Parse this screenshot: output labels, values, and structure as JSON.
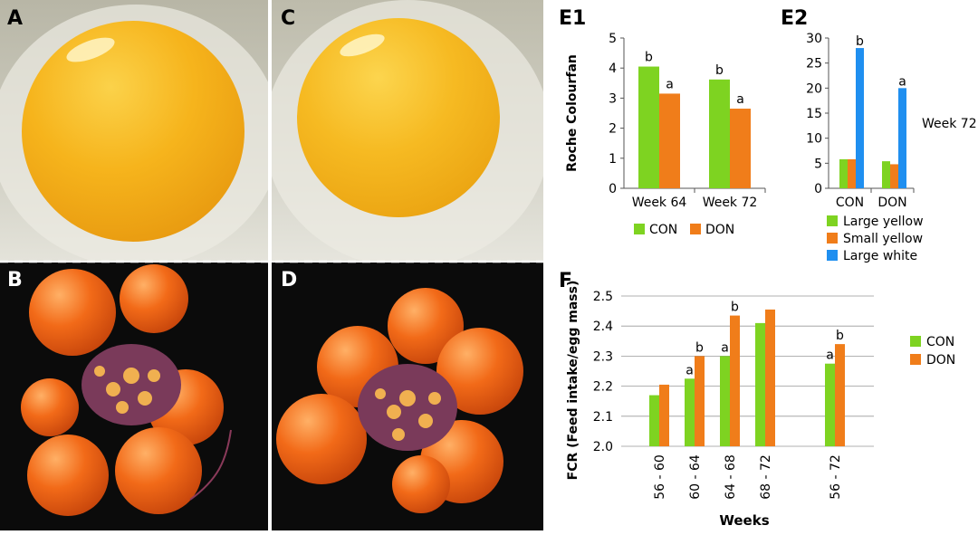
{
  "panels": {
    "A": "A",
    "B": "B",
    "C": "C",
    "D": "D",
    "E1": "E1",
    "E2": "E2",
    "F": "F"
  },
  "colors": {
    "CON": "#7ed321",
    "DON": "#f07d1a",
    "large_white": "#1f8ff0",
    "yolk": "#f5b01a",
    "follicle": "#e85a10",
    "photo_bg_bottom": "#0b0b0b"
  },
  "chart_data": [
    {
      "id": "E1",
      "type": "bar",
      "ylabel": "Roche Colourfan",
      "ylim": [
        0,
        5
      ],
      "yticks": [
        "0",
        "1",
        "2",
        "3",
        "4",
        "5"
      ],
      "categories": [
        "Week 64",
        "Week 72"
      ],
      "series": [
        {
          "name": "CON",
          "values": [
            4.05,
            3.62
          ],
          "labels": [
            "b",
            "b"
          ]
        },
        {
          "name": "DON",
          "values": [
            3.15,
            2.65
          ],
          "labels": [
            "a",
            "a"
          ]
        }
      ],
      "legend": [
        "CON",
        "DON"
      ]
    },
    {
      "id": "E2",
      "type": "bar",
      "annotation": "Week 72",
      "ylim": [
        0,
        30
      ],
      "yticks": [
        "0",
        "5",
        "10",
        "15",
        "20",
        "25",
        "30"
      ],
      "categories": [
        "CON",
        "DON"
      ],
      "series": [
        {
          "name": "Large yellow",
          "values": [
            5.8,
            5.4
          ],
          "labels": [
            "",
            ""
          ]
        },
        {
          "name": "Small yellow",
          "values": [
            5.8,
            4.8
          ],
          "labels": [
            "",
            ""
          ]
        },
        {
          "name": "Large white",
          "values": [
            28.0,
            20.0
          ],
          "labels": [
            "b",
            "a"
          ]
        }
      ],
      "legend": [
        "Large yellow",
        "Small yellow",
        "Large white"
      ]
    },
    {
      "id": "F",
      "type": "bar",
      "ylabel": "FCR (Feed intake/egg mass)",
      "xlabel": "Weeks",
      "ylim": [
        2.0,
        2.5
      ],
      "yticks": [
        "2.0",
        "2.1",
        "2.2",
        "2.3",
        "2.4",
        "2.5"
      ],
      "categories": [
        "56 - 60",
        "60 - 64",
        "64 - 68",
        "68 - 72",
        "56 - 72"
      ],
      "series": [
        {
          "name": "CON",
          "values": [
            2.17,
            2.225,
            2.3,
            2.41,
            2.275
          ],
          "labels": [
            "",
            "a",
            "a",
            "",
            "a"
          ]
        },
        {
          "name": "DON",
          "values": [
            2.205,
            2.3,
            2.435,
            2.455,
            2.34
          ],
          "labels": [
            "",
            "b",
            "b",
            "",
            "b"
          ]
        }
      ],
      "legend": [
        "CON",
        "DON"
      ]
    }
  ]
}
